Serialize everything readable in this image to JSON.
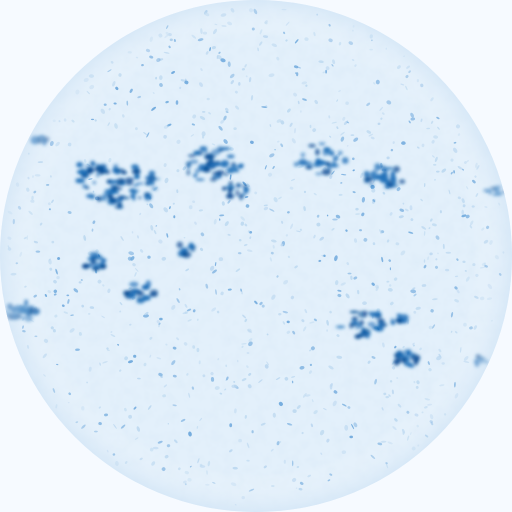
{
  "image": {
    "subject": "solar-disk",
    "colors": {
      "background": "#f6faff",
      "disk_base": "#e3f0fb",
      "granulation_light": "#ffffff",
      "granulation_mid": "#bcd8f0",
      "network": "#6ea8dc",
      "active_region": "#1f6fb8",
      "active_core": "#0b4f96"
    }
  }
}
